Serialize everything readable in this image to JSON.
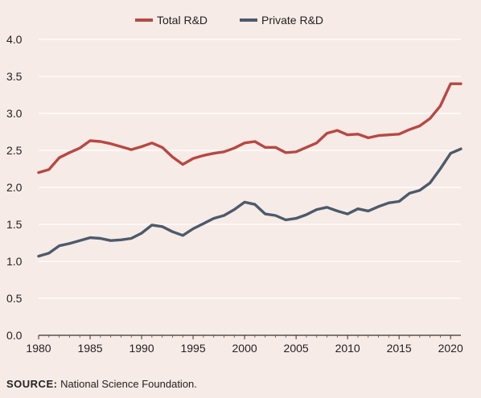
{
  "chart_data": {
    "type": "line",
    "title": "",
    "xlabel": "",
    "ylabel": "",
    "x": [
      1980,
      1981,
      1982,
      1983,
      1984,
      1985,
      1986,
      1987,
      1988,
      1989,
      1990,
      1991,
      1992,
      1993,
      1994,
      1995,
      1996,
      1997,
      1998,
      1999,
      2000,
      2001,
      2002,
      2003,
      2004,
      2005,
      2006,
      2007,
      2008,
      2009,
      2010,
      2011,
      2012,
      2013,
      2014,
      2015,
      2016,
      2017,
      2018,
      2019,
      2020,
      2021
    ],
    "xlim": [
      1980,
      2021
    ],
    "ylim": [
      0,
      4.0
    ],
    "xticks": [
      "1980",
      "1985",
      "1990",
      "1995",
      "2000",
      "2005",
      "2010",
      "2015",
      "2020"
    ],
    "yticks": [
      "0.0",
      "0.5",
      "1.0",
      "1.5",
      "2.0",
      "2.5",
      "3.0",
      "3.5",
      "4.0"
    ],
    "grid": "horizontal",
    "legend_position": "top-center",
    "series": [
      {
        "name": "Total R&D",
        "color": "#b94742",
        "values": [
          2.2,
          2.24,
          2.4,
          2.47,
          2.53,
          2.63,
          2.62,
          2.59,
          2.55,
          2.51,
          2.55,
          2.6,
          2.54,
          2.41,
          2.31,
          2.39,
          2.43,
          2.46,
          2.48,
          2.53,
          2.6,
          2.62,
          2.54,
          2.54,
          2.47,
          2.48,
          2.54,
          2.6,
          2.73,
          2.77,
          2.71,
          2.72,
          2.67,
          2.7,
          2.71,
          2.72,
          2.78,
          2.83,
          2.93,
          3.1,
          3.4,
          3.4
        ]
      },
      {
        "name": "Private R&D",
        "color": "#4c5a6b",
        "values": [
          1.07,
          1.11,
          1.21,
          1.24,
          1.28,
          1.32,
          1.31,
          1.28,
          1.29,
          1.31,
          1.38,
          1.49,
          1.47,
          1.4,
          1.35,
          1.44,
          1.51,
          1.58,
          1.62,
          1.7,
          1.8,
          1.77,
          1.64,
          1.62,
          1.56,
          1.58,
          1.63,
          1.7,
          1.73,
          1.68,
          1.64,
          1.71,
          1.68,
          1.74,
          1.79,
          1.81,
          1.92,
          1.96,
          2.06,
          2.25,
          2.46,
          2.52
        ]
      }
    ]
  },
  "source": {
    "label": "SOURCE:",
    "text": " National Science Foundation."
  }
}
